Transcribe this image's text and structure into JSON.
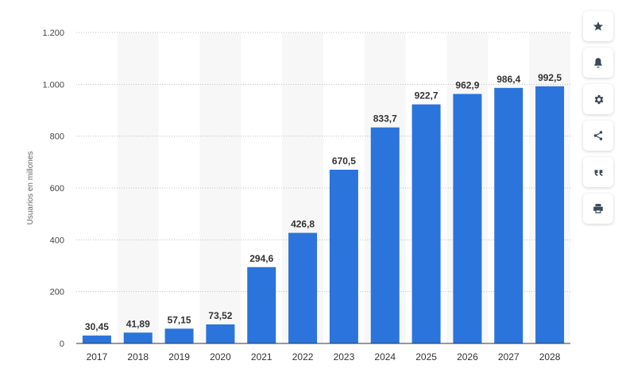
{
  "chart_data": {
    "type": "bar",
    "categories": [
      "2017",
      "2018",
      "2019",
      "2020",
      "2021",
      "2022",
      "2023",
      "2024",
      "2025",
      "2026",
      "2027",
      "2028"
    ],
    "values": [
      30.45,
      41.89,
      57.15,
      73.52,
      294.6,
      426.8,
      670.5,
      833.7,
      922.7,
      962.9,
      986.4,
      992.5
    ],
    "value_labels": [
      "30,45",
      "41,89",
      "57,15",
      "73,52",
      "294,6",
      "426,8",
      "670,5",
      "833,7",
      "922,7",
      "962,9",
      "986,4",
      "992,5"
    ],
    "title": "",
    "xlabel": "",
    "ylabel": "Usuarios en millones",
    "ylim": [
      0,
      1200
    ],
    "yticks": [
      0,
      200,
      400,
      600,
      800,
      1000,
      1200
    ],
    "ytick_labels": [
      "0",
      "200",
      "400",
      "600",
      "800",
      "1.000",
      "1.200"
    ],
    "grid": true,
    "bar_color": "#2a74db",
    "alt_column_shading": "#f7f7f7"
  },
  "toolbar": {
    "icons": [
      "star-icon",
      "bell-icon",
      "gear-icon",
      "share-icon",
      "quote-icon",
      "print-icon"
    ]
  }
}
